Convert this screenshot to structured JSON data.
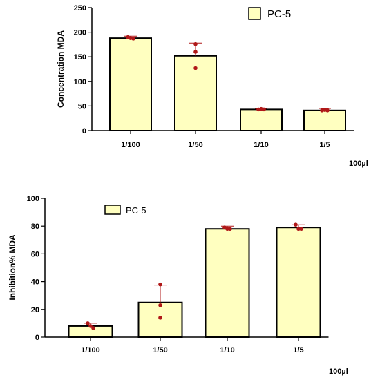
{
  "chart_data": [
    {
      "type": "bar",
      "categories": [
        "1/100",
        "1/50",
        "1/10",
        "1/5"
      ],
      "series": [
        {
          "name": "PC-5",
          "values": [
            188,
            152,
            43,
            41
          ],
          "error_upper": [
            192,
            178,
            45,
            45
          ],
          "points": [
            [
              190,
              188,
              187
            ],
            [
              176,
              160,
              127
            ],
            [
              43,
              44,
              43
            ],
            [
              41,
              42,
              41
            ]
          ]
        }
      ],
      "ylabel": "Concentration MDA",
      "xlabel": "100µl",
      "ylim": [
        0,
        250
      ],
      "yticks": [
        0,
        50,
        100,
        150,
        200,
        250
      ],
      "grid": false,
      "legend": "top-right",
      "colors": {
        "bar_fill": "#FFFFC0",
        "bar_stroke": "#000000",
        "point": "#B01818",
        "errorbar": "#B01818"
      }
    },
    {
      "type": "bar",
      "categories": [
        "1/100",
        "1/50",
        "1/10",
        "1/5"
      ],
      "series": [
        {
          "name": "PC-5",
          "values": [
            8,
            25,
            78,
            79
          ],
          "error_upper": [
            10,
            37.5,
            80,
            81
          ],
          "points": [
            [
              10,
              8,
              6.5
            ],
            [
              38,
              23,
              14
            ],
            [
              79,
              78,
              78
            ],
            [
              81,
              78,
              78
            ]
          ]
        }
      ],
      "ylabel": "Inhibition% MDA",
      "xlabel": "100µl",
      "ylim": [
        0,
        100
      ],
      "yticks": [
        0,
        20,
        40,
        60,
        80,
        100
      ],
      "grid": false,
      "legend": "top-left",
      "colors": {
        "bar_fill": "#FFFFC0",
        "bar_stroke": "#000000",
        "point": "#B01818",
        "errorbar": "#B01818"
      }
    }
  ]
}
